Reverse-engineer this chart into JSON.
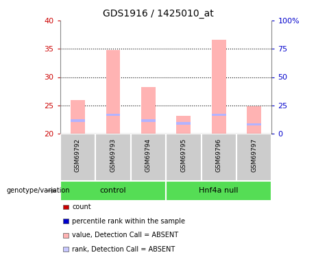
{
  "title": "GDS1916 / 1425010_at",
  "samples": [
    "GSM69792",
    "GSM69793",
    "GSM69794",
    "GSM69795",
    "GSM69796",
    "GSM69797"
  ],
  "bar_bottom": 20,
  "value_tops": [
    26.0,
    34.8,
    28.2,
    23.2,
    36.6,
    24.8
  ],
  "rank_tops": [
    22.55,
    23.55,
    22.55,
    22.05,
    23.55,
    21.85
  ],
  "rank_bottoms": [
    22.1,
    23.1,
    22.1,
    21.6,
    23.1,
    21.4
  ],
  "ylim_left": [
    20,
    40
  ],
  "ylim_right": [
    0,
    100
  ],
  "yticks_left": [
    20,
    25,
    30,
    35,
    40
  ],
  "yticks_right": [
    0,
    25,
    50,
    75,
    100
  ],
  "ytick_labels_right": [
    "0",
    "25",
    "50",
    "75",
    "100%"
  ],
  "gridlines": [
    25,
    30,
    35
  ],
  "color_value_bar": "#ffb3b3",
  "color_rank_bar": "#b3b3ff",
  "left_tick_color": "#cc0000",
  "right_tick_color": "#0000cc",
  "sample_bg": "#cccccc",
  "group_bg_control": "#55dd55",
  "group_bg_hnf4a": "#55dd55",
  "legend_items": [
    "count",
    "percentile rank within the sample",
    "value, Detection Call = ABSENT",
    "rank, Detection Call = ABSENT"
  ],
  "legend_colors": [
    "#cc0000",
    "#0000cc",
    "#ffb3b3",
    "#c8c8ff"
  ]
}
